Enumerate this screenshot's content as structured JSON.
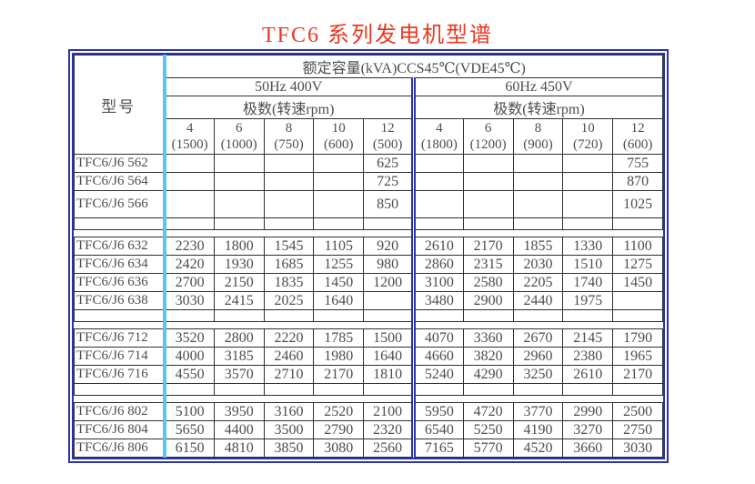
{
  "title": "TFC6 系列发电机型谱",
  "colors": {
    "title_red": "#ee3722",
    "frame_blue": "#2c34a4",
    "divider_cyan": "#58c6f2",
    "grid_line": "#2f2f2f",
    "text_gray": "#4d4d4d"
  },
  "table": {
    "model_header": "型号",
    "capacity_header": "额定容量(kVA)CCS45℃(VDE45℃)",
    "sections": [
      {
        "label": "50Hz 400V",
        "poles_header": "极数(转速rpm)",
        "columns": [
          {
            "pole": "4",
            "speed": "(1500)"
          },
          {
            "pole": "6",
            "speed": "(1000)"
          },
          {
            "pole": "8",
            "speed": "(750)"
          },
          {
            "pole": "10",
            "speed": "(600)"
          },
          {
            "pole": "12",
            "speed": "(500)"
          }
        ]
      },
      {
        "label": "60Hz 450V",
        "poles_header": "极数(转速rpm)",
        "columns": [
          {
            "pole": "4",
            "speed": "(1800)"
          },
          {
            "pole": "6",
            "speed": "(1200)"
          },
          {
            "pole": "8",
            "speed": "(900)"
          },
          {
            "pole": "10",
            "speed": "(720)"
          },
          {
            "pole": "12",
            "speed": "(600)"
          }
        ]
      }
    ],
    "rows": [
      {
        "type": "data",
        "model": "TFC6/J6 562",
        "values": [
          "",
          "",
          "",
          "",
          "625",
          "",
          "",
          "",
          "",
          "755"
        ]
      },
      {
        "type": "data",
        "model": "TFC6/J6 564",
        "values": [
          "",
          "",
          "",
          "",
          "725",
          "",
          "",
          "",
          "",
          "870"
        ]
      },
      {
        "type": "data",
        "model": "TFC6/J6 566",
        "tall": true,
        "values": [
          "",
          "",
          "",
          "",
          "850",
          "",
          "",
          "",
          "",
          "1025"
        ]
      },
      {
        "type": "gap"
      },
      {
        "type": "data",
        "model": "TFC6/J6 632",
        "values": [
          "2230",
          "1800",
          "1545",
          "1105",
          "920",
          "2610",
          "2170",
          "1855",
          "1330",
          "1100"
        ]
      },
      {
        "type": "data",
        "model": "TFC6/J6 634",
        "values": [
          "2420",
          "1930",
          "1685",
          "1255",
          "980",
          "2860",
          "2315",
          "2030",
          "1510",
          "1275"
        ]
      },
      {
        "type": "data",
        "model": "TFC6/J6 636",
        "values": [
          "2700",
          "2150",
          "1835",
          "1450",
          "1200",
          "3100",
          "2580",
          "2205",
          "1740",
          "1450"
        ]
      },
      {
        "type": "data",
        "model": "TFC6/J6 638",
        "values": [
          "3030",
          "2415",
          "2025",
          "1640",
          "",
          "3480",
          "2900",
          "2440",
          "1975",
          ""
        ]
      },
      {
        "type": "gap"
      },
      {
        "type": "data",
        "model": "TFC6/J6 712",
        "values": [
          "3520",
          "2800",
          "2220",
          "1785",
          "1500",
          "4070",
          "3360",
          "2670",
          "2145",
          "1790"
        ]
      },
      {
        "type": "data",
        "model": "TFC6/J6 714",
        "values": [
          "4000",
          "3185",
          "2460",
          "1980",
          "1640",
          "4660",
          "3820",
          "2960",
          "2380",
          "1965"
        ]
      },
      {
        "type": "data",
        "model": "TFC6/J6 716",
        "values": [
          "4550",
          "3570",
          "2710",
          "2170",
          "1810",
          "5240",
          "4290",
          "3250",
          "2610",
          "2170"
        ]
      },
      {
        "type": "gap"
      },
      {
        "type": "data",
        "model": "TFC6/J6 802",
        "values": [
          "5100",
          "3950",
          "3160",
          "2520",
          "2100",
          "5950",
          "4720",
          "3770",
          "2990",
          "2500"
        ]
      },
      {
        "type": "data",
        "model": "TFC6/J6 804",
        "values": [
          "5650",
          "4400",
          "3500",
          "2790",
          "2320",
          "6540",
          "5250",
          "4190",
          "3270",
          "2750"
        ]
      },
      {
        "type": "data",
        "model": "TFC6/J6 806",
        "values": [
          "6150",
          "4810",
          "3850",
          "3080",
          "2560",
          "7165",
          "5770",
          "4520",
          "3660",
          "3030"
        ]
      }
    ]
  }
}
